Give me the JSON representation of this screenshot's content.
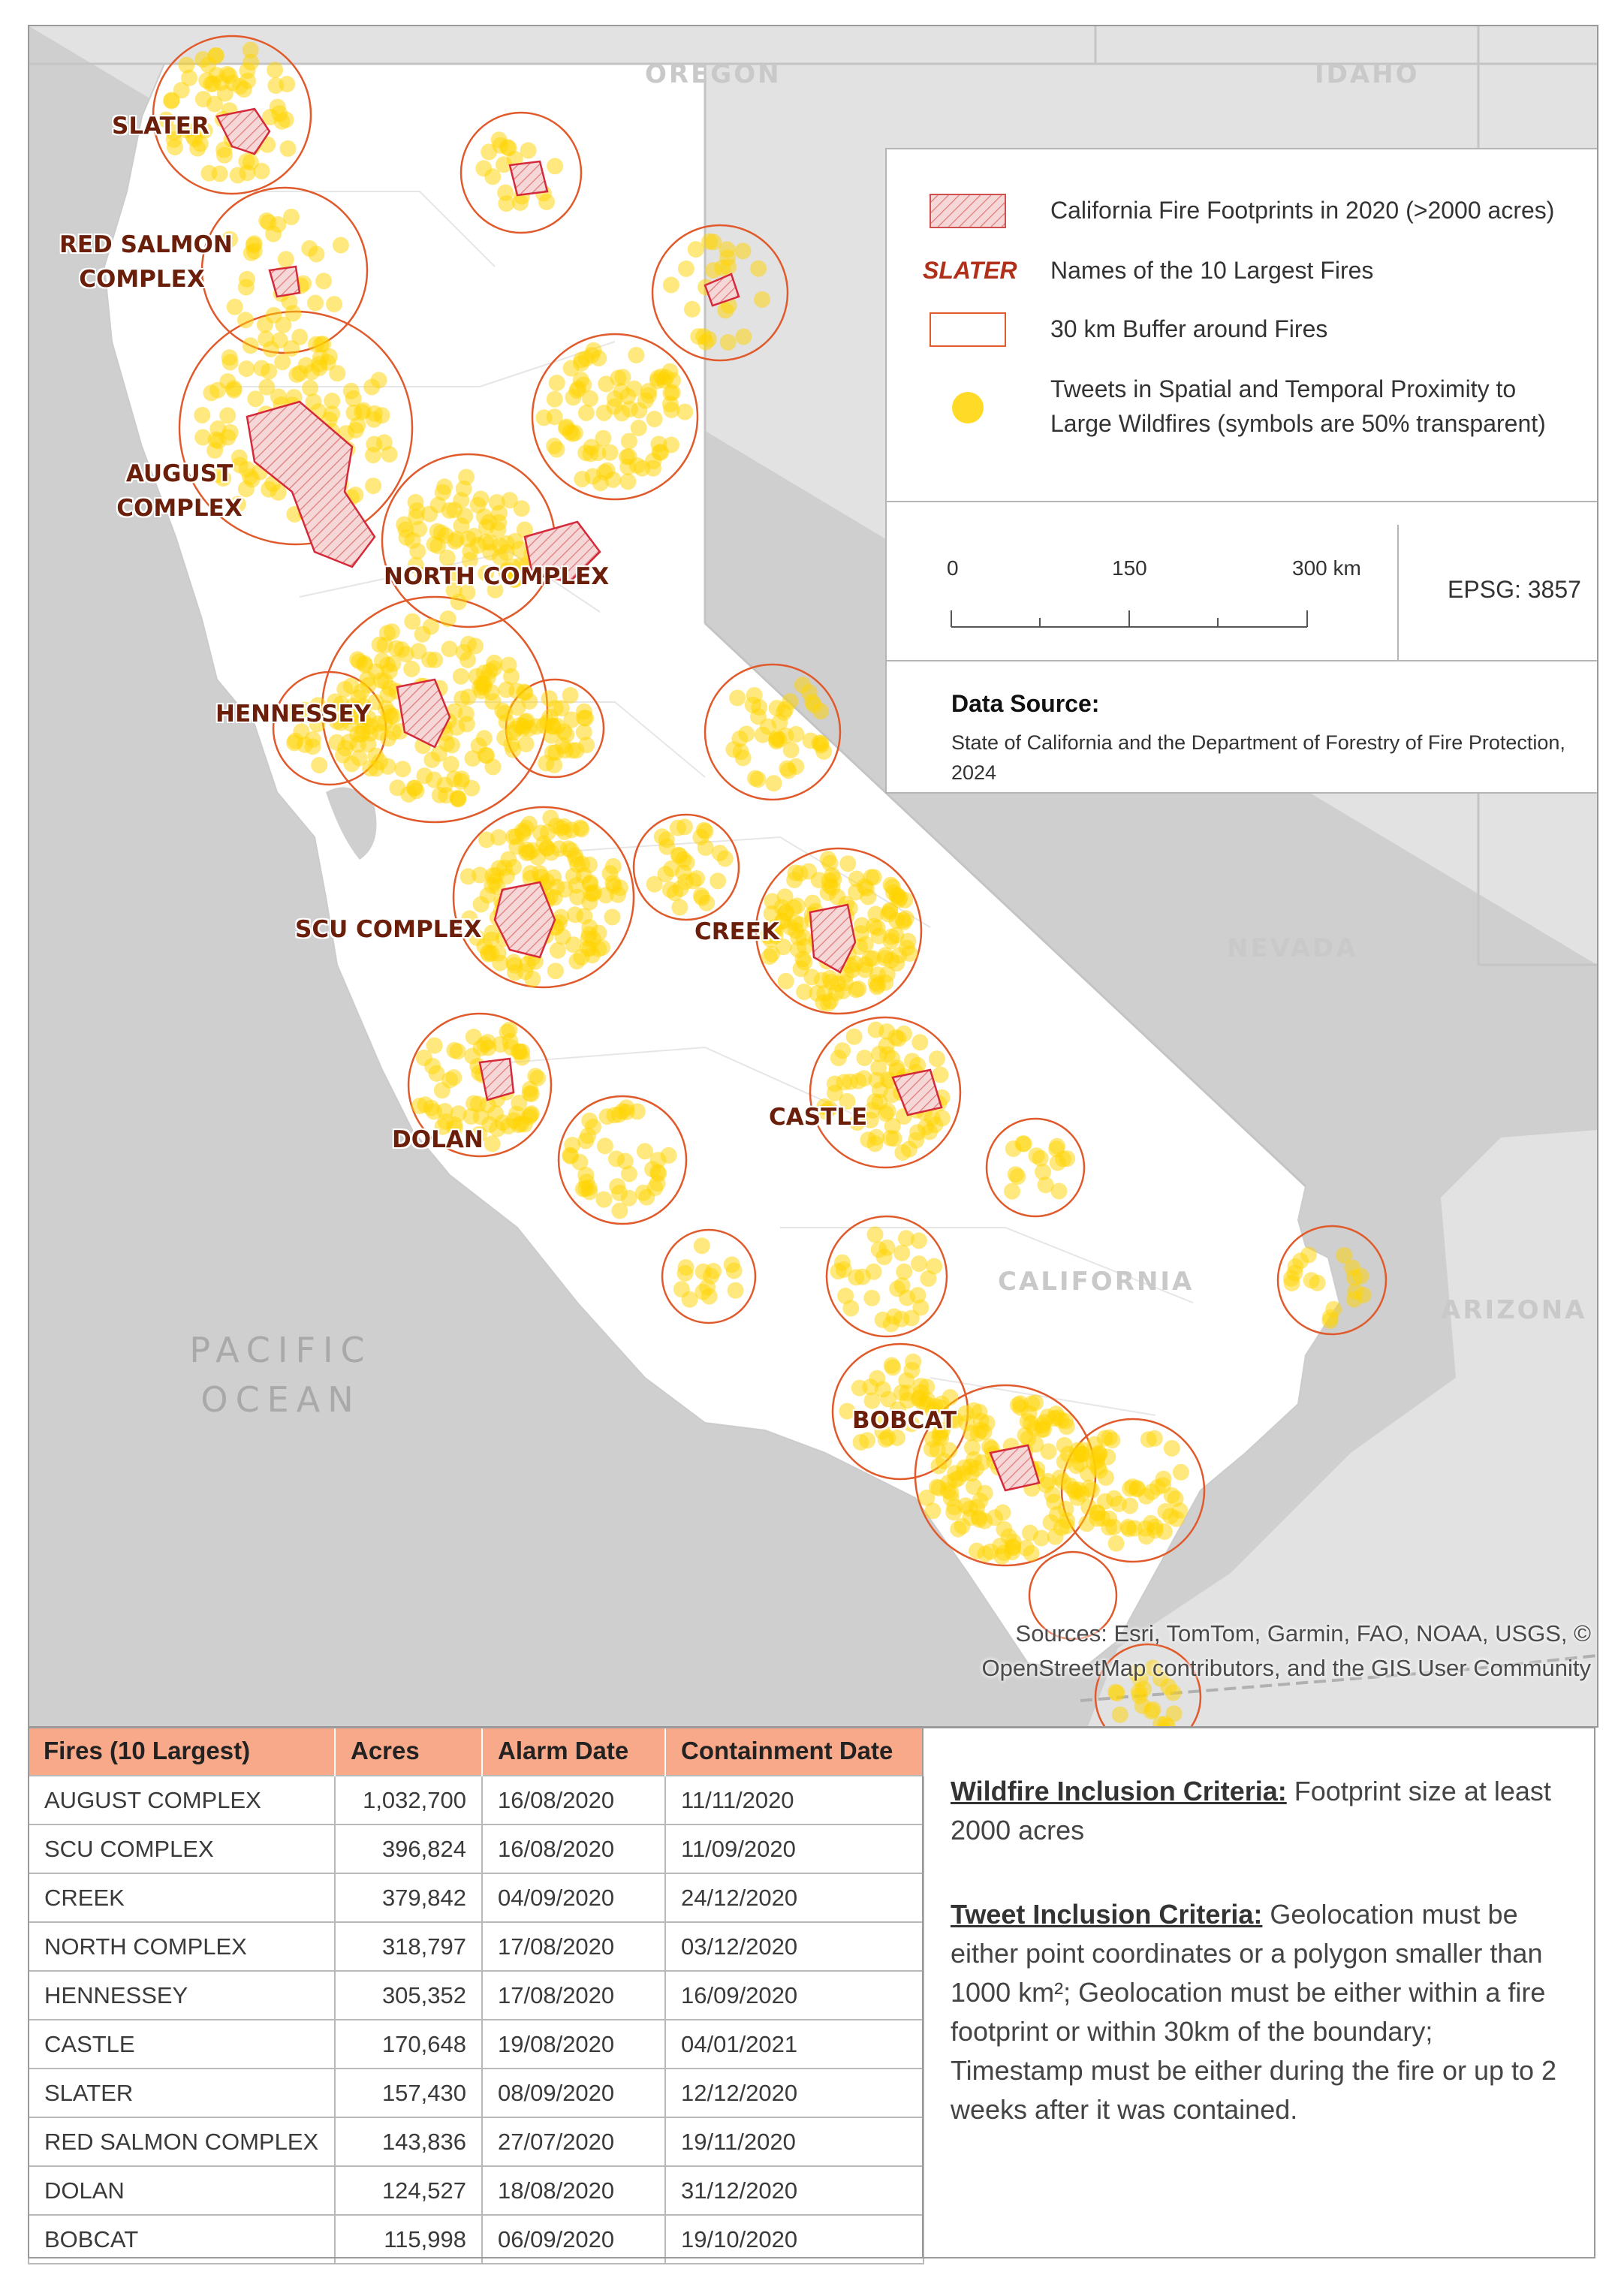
{
  "map": {
    "region_labels": {
      "oregon": "OREGON",
      "idaho": "IDAHO",
      "nevada": "NEVADA",
      "california": "CALIFORNIA",
      "arizona": "ARIZONA"
    },
    "ocean_label_line1": "PACIFIC",
    "ocean_label_line2": "OCEAN",
    "fire_labels": {
      "slater": "SLATER",
      "red_salmon_1": "RED SALMON",
      "red_salmon_2": "COMPLEX",
      "august_1": "AUGUST",
      "august_2": "COMPLEX",
      "north_complex": "NORTH COMPLEX",
      "hennessey": "HENNESSEY",
      "scu_complex": "SCU COMPLEX",
      "creek": "CREEK",
      "castle": "CASTLE",
      "dolan": "DOLAN",
      "bobcat": "BOBCAT"
    },
    "attribution_line1": "Sources: Esri, TomTom, Garmin, FAO, NOAA, USGS, ©",
    "attribution_line2": "OpenStreetMap contributors, and the GIS User Community",
    "colors": {
      "background_gray": "#cfcfcf",
      "land": "#ffffff",
      "buffer_stroke": "#e05a2b",
      "tweet_fill": "#ffd400",
      "footprint_stroke": "#d42a3a"
    }
  },
  "legend": {
    "footprints": "California Fire Footprints in 2020 (>2000 acres)",
    "names_symbol": "SLATER",
    "names": "Names of the 10 Largest Fires",
    "buffer": "30 km Buffer around Fires",
    "tweets_line1": "Tweets in Spatial and Temporal Proximity to",
    "tweets_line2": "Large Wildfires (symbols are 50% transparent)",
    "scale_0": "0",
    "scale_150": "150",
    "scale_300": "300 km",
    "epsg": "EPSG: 3857",
    "source_title": "Data Source:",
    "source_body": "State of California and the Department of Forestry of Fire Protection, 2024"
  },
  "table": {
    "headers": [
      "Fires (10 Largest)",
      "Acres",
      "Alarm Date",
      "Containment Date"
    ],
    "rows": [
      [
        "AUGUST COMPLEX",
        "1,032,700",
        "16/08/2020",
        "11/11/2020"
      ],
      [
        "SCU COMPLEX",
        "396,824",
        "16/08/2020",
        "11/09/2020"
      ],
      [
        "CREEK",
        "379,842",
        "04/09/2020",
        "24/12/2020"
      ],
      [
        "NORTH COMPLEX",
        "318,797",
        "17/08/2020",
        "03/12/2020"
      ],
      [
        "HENNESSEY",
        "305,352",
        "17/08/2020",
        "16/09/2020"
      ],
      [
        "CASTLE",
        "170,648",
        "19/08/2020",
        "04/01/2021"
      ],
      [
        "SLATER",
        "157,430",
        "08/09/2020",
        "12/12/2020"
      ],
      [
        "RED SALMON COMPLEX",
        "143,836",
        "27/07/2020",
        "19/11/2020"
      ],
      [
        "DOLAN",
        "124,527",
        "18/08/2020",
        "31/12/2020"
      ],
      [
        "BOBCAT",
        "115,998",
        "06/09/2020",
        "19/10/2020"
      ]
    ]
  },
  "criteria": {
    "wildfire_head": "Wildfire Inclusion Criteria:",
    "wildfire_body": " Footprint size at least 2000 acres",
    "tweet_head": "Tweet Inclusion Criteria:",
    "tweet_body": " Geolocation must be either point coordinates or a polygon smaller than 1000 km²; Geolocation must be either within a fire footprint or within 30km of the boundary; Timestamp must be either during the fire or up to 2 weeks after it was contained."
  }
}
